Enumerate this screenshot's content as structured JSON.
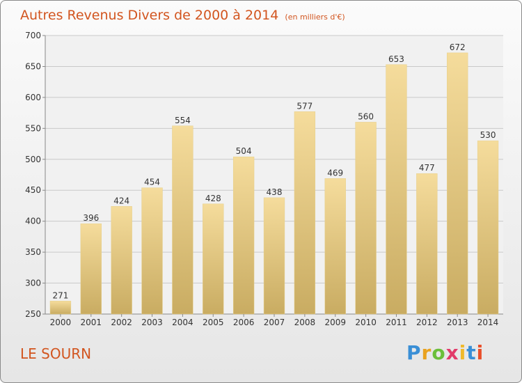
{
  "chart_data": {
    "type": "bar",
    "title": "Autres Revenus Divers de 2000 à 2014",
    "unit": "(en milliers d'€)",
    "categories": [
      "2000",
      "2001",
      "2002",
      "2003",
      "2004",
      "2005",
      "2006",
      "2007",
      "2008",
      "2009",
      "2010",
      "2011",
      "2012",
      "2013",
      "2014"
    ],
    "values": [
      271,
      396,
      424,
      454,
      554,
      428,
      504,
      438,
      577,
      469,
      560,
      653,
      477,
      672,
      530
    ],
    "ylim": [
      250,
      700
    ],
    "yticks": [
      250,
      300,
      350,
      400,
      450,
      500,
      550,
      600,
      650,
      700
    ],
    "grid": true,
    "bar_color_top": "#f5dc9c",
    "bar_color_bottom": "#c9ac62"
  },
  "place": "LE SOURN",
  "logo": {
    "letters": [
      "P",
      "r",
      "o",
      "x",
      "i",
      "t",
      "i"
    ]
  }
}
